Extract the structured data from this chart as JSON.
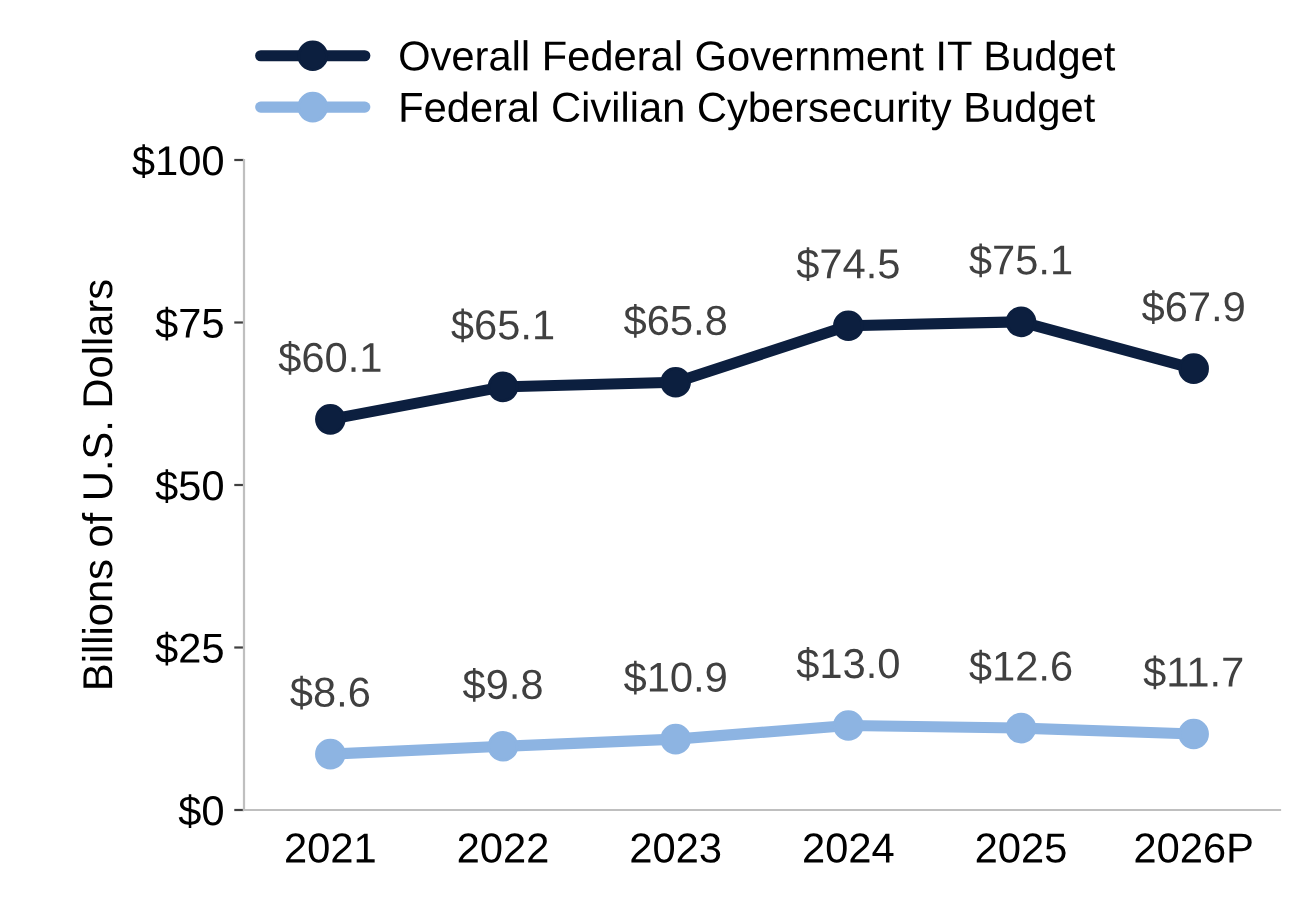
{
  "chart_data": {
    "type": "line",
    "ylabel": "Billions of U.S. Dollars",
    "categories": [
      "2021",
      "2022",
      "2023",
      "2024",
      "2025",
      "2026P"
    ],
    "series": [
      {
        "name": "Overall Federal Government IT Budget",
        "color": "#0c1f3f",
        "values": [
          60.1,
          65.1,
          65.8,
          74.5,
          75.1,
          67.9
        ],
        "value_labels": [
          "$60.1",
          "$65.1",
          "$65.8",
          "$74.5",
          "$75.1",
          "$67.9"
        ]
      },
      {
        "name": "Federal Civilian Cybersecurity Budget",
        "color": "#8db4e2",
        "values": [
          8.6,
          9.8,
          10.9,
          13.0,
          12.6,
          11.7
        ],
        "value_labels": [
          "$8.6",
          "$9.8",
          "$10.9",
          "$13.0",
          "$12.6",
          "$11.7"
        ]
      }
    ],
    "ylim": [
      0,
      100
    ],
    "yticks": [
      {
        "value": 0,
        "label": "$0"
      },
      {
        "value": 25,
        "label": "$25"
      },
      {
        "value": 50,
        "label": "$50"
      },
      {
        "value": 75,
        "label": "$75"
      },
      {
        "value": 100,
        "label": "$100"
      }
    ],
    "grid": false,
    "legend": "top",
    "marker": "circle",
    "line_style": "solid"
  }
}
